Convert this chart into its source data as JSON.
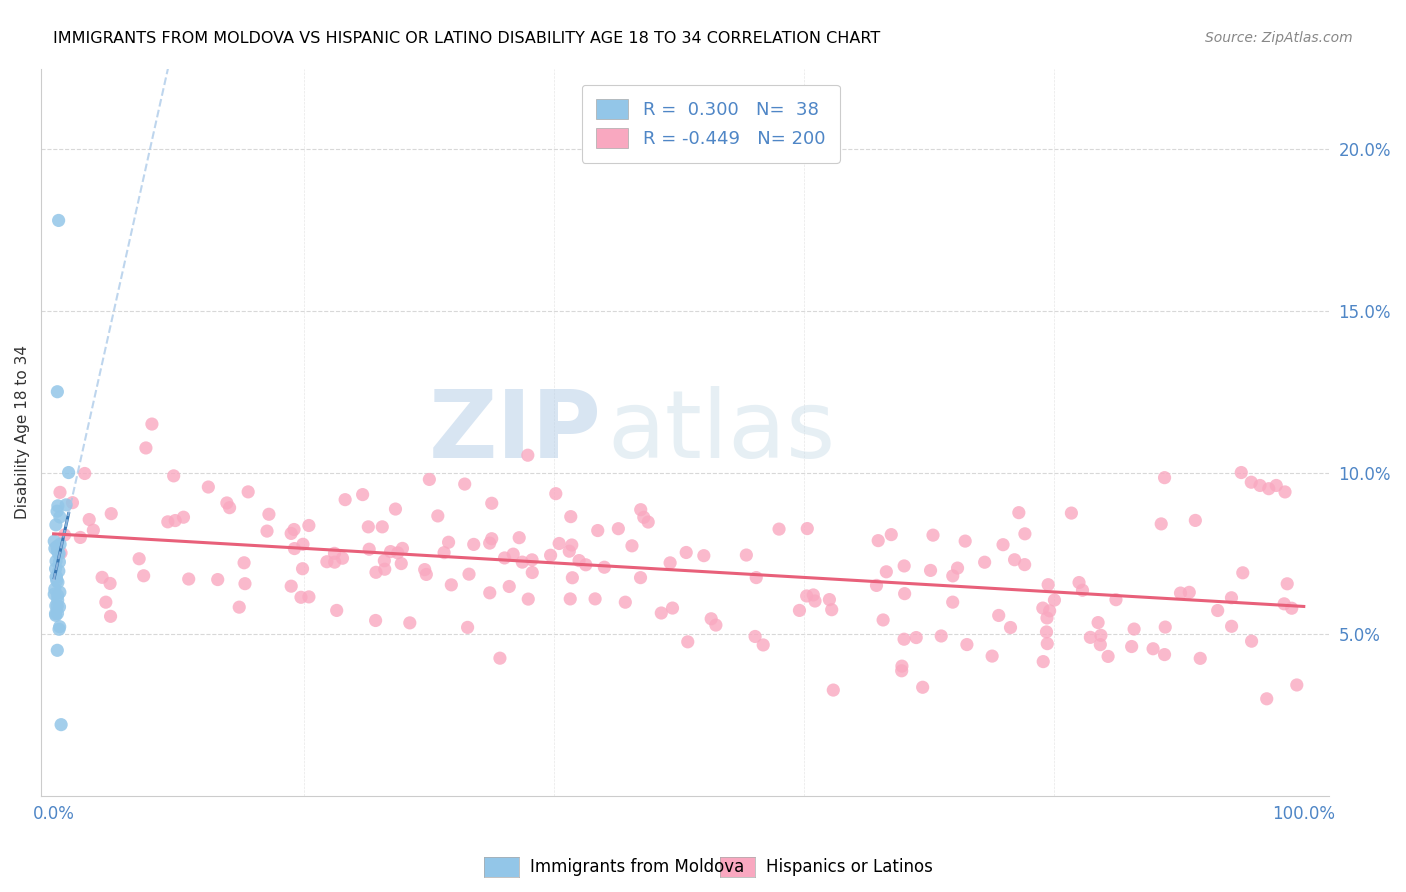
{
  "title": "IMMIGRANTS FROM MOLDOVA VS HISPANIC OR LATINO DISABILITY AGE 18 TO 34 CORRELATION CHART",
  "source": "Source: ZipAtlas.com",
  "ylabel": "Disability Age 18 to 34",
  "legend_label1": "Immigrants from Moldova",
  "legend_label2": "Hispanics or Latinos",
  "r1": 0.3,
  "n1": 38,
  "r2": -0.449,
  "n2": 200,
  "color_blue": "#93c6e8",
  "color_pink": "#f9a8c0",
  "color_blue_line": "#3878b4",
  "color_pink_line": "#e8607a",
  "color_blue_dashed": "#a8c8e8",
  "watermark_zip": "ZIP",
  "watermark_atlas": "atlas",
  "ylim_min": 0.0,
  "ylim_max": 0.225,
  "xlim_min": -0.01,
  "xlim_max": 1.02,
  "yticks": [
    0.05,
    0.1,
    0.15,
    0.2
  ],
  "ytick_labels": [
    "5.0%",
    "10.0%",
    "15.0%",
    "20.0%"
  ],
  "tick_color": "#4f86c6",
  "title_fontsize": 11.5,
  "source_fontsize": 10,
  "seed": 12345
}
